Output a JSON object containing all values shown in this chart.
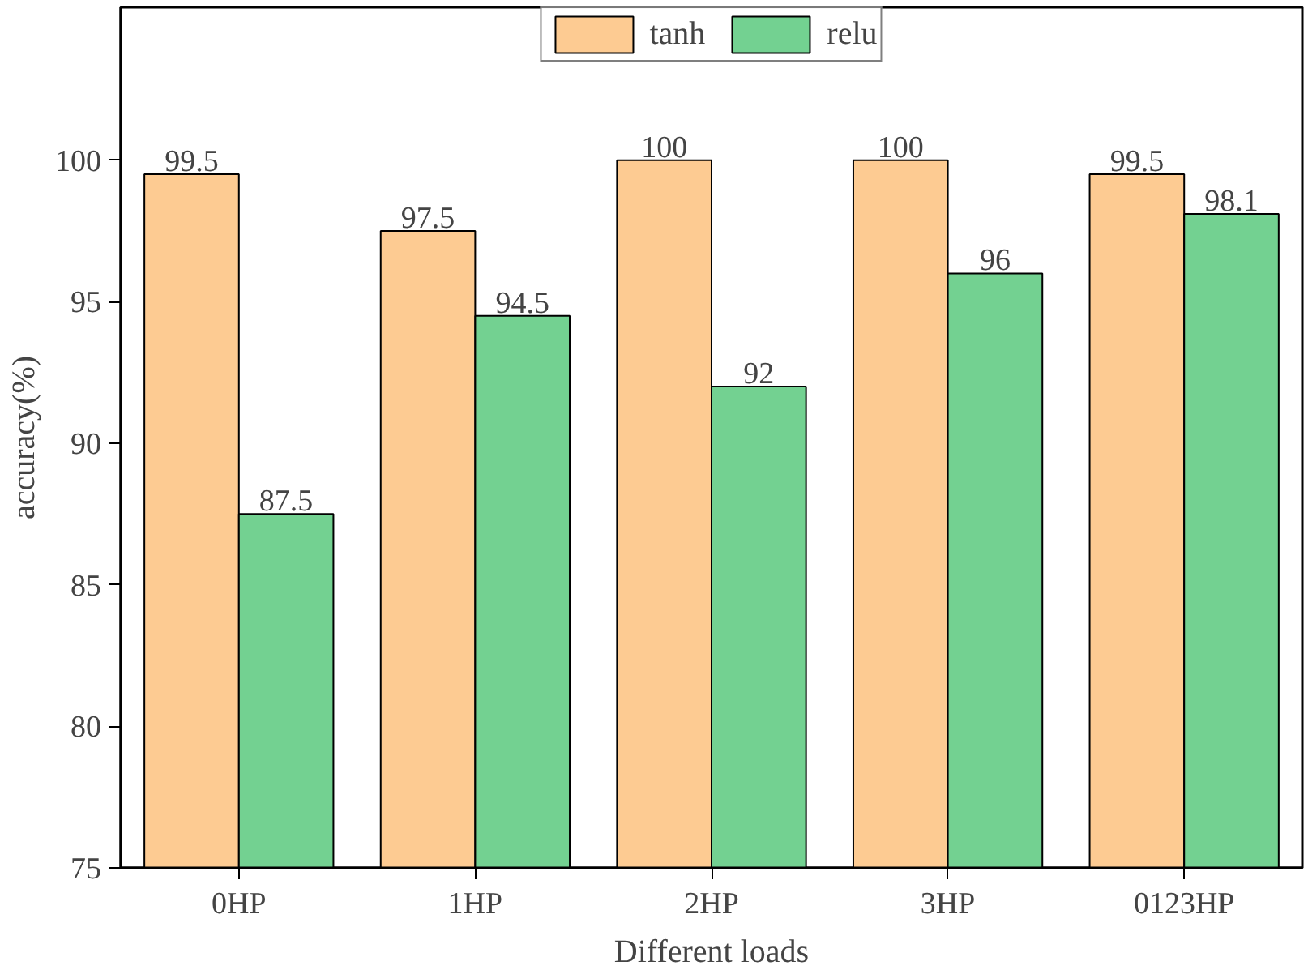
{
  "chart_data": {
    "type": "bar",
    "xlabel": "Different loads",
    "ylabel": "accuracy(%)",
    "categories": [
      "0HP",
      "1HP",
      "2HP",
      "3HP",
      "0123HP"
    ],
    "series": [
      {
        "name": "tanh",
        "color": "#fdcb92",
        "values": [
          99.5,
          97.5,
          100,
          100,
          99.5
        ]
      },
      {
        "name": "relu",
        "color": "#73d191",
        "values": [
          87.5,
          94.5,
          92,
          96,
          98.1
        ]
      }
    ],
    "ylim": [
      75,
      105.4
    ],
    "yticks": [
      75,
      80,
      85,
      90,
      95,
      100
    ],
    "data_labels": true,
    "legend": "top",
    "grid": false
  }
}
